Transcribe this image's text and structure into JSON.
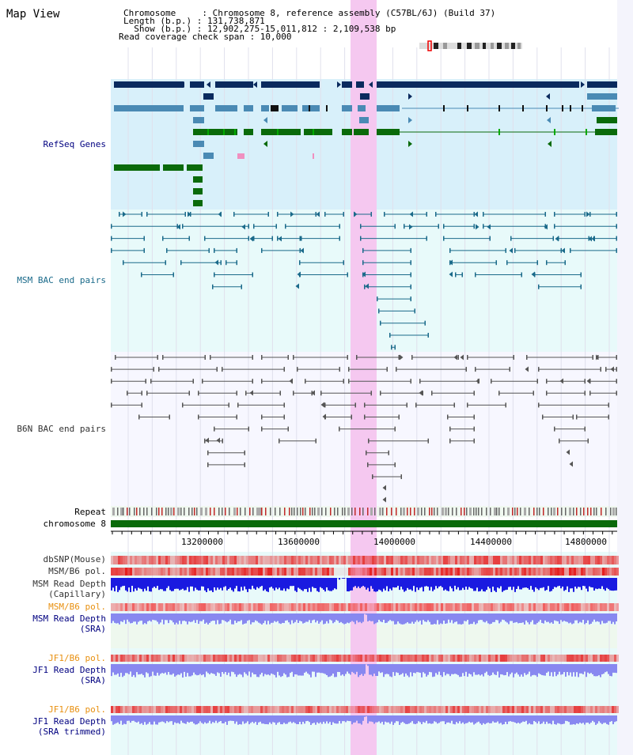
{
  "title": "Map View",
  "header": {
    "chromosome": "Chromosome     : Chromosome 8, reference assembly (C57BL/6J) (Build 37)",
    "length": "Length (b.p.) : 131,738,871",
    "show": "  Show (b.p.) : 12,902,275-15,011,812 : 2,109,538 bp",
    "coverage": "Read coverage check span : 10,000"
  },
  "tracks": {
    "refseq": "RefSeq Genes",
    "msm_bac": "MSM BAC end pairs",
    "b6n_bac": "B6N BAC end pairs",
    "repeat": "Repeat",
    "chromosome": "chromosome 8",
    "dbsnp": "dbSNP(Mouse)",
    "msm_b6_pol": "MSM/B6 pol.",
    "msm_depth_cap_1": "MSM Read Depth",
    "msm_depth_cap_2": "(Capillary)",
    "msm_b6_pol_sra": "MSM/B6 pol.",
    "msm_depth_sra_1": "MSM Read Depth",
    "msm_depth_sra_2": "(SRA)",
    "jf1_b6_pol": "JF1/B6 pol.",
    "jf1_depth_sra_1": "JF1 Read Depth",
    "jf1_depth_sra_2": "(SRA)",
    "jf1_b6_pol_trim": "JF1/B6 pol.",
    "jf1_depth_trim_1": "JF1 Read Depth",
    "jf1_depth_trim_2": "(SRA trimmed)"
  },
  "axis_ticks": [
    "13200000",
    "13600000",
    "14000000",
    "14400000",
    "14800000"
  ],
  "colors": {
    "refseq_dark": "#0a2a5e",
    "refseq_mid": "#4a8ab4",
    "refseq_green": "#0a6a0a",
    "msm_bac": "#1a6a8a",
    "b6n_bac": "#555555",
    "chromosome_bar": "#0a6a0a",
    "highlight": "#f5c8f0",
    "depth_cap": "#1a1ae0",
    "depth_sra": "#8888f0",
    "track_label_dark": "#000080",
    "track_label_orange": "#e89010"
  }
}
